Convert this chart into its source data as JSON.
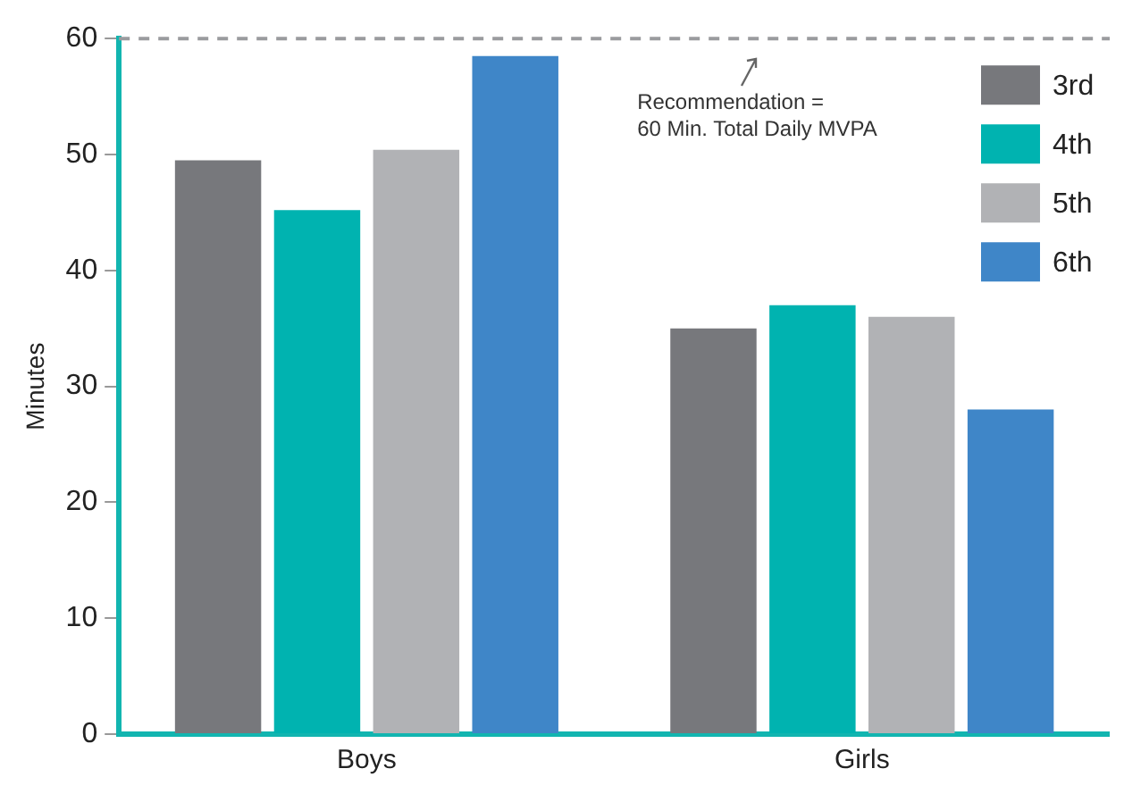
{
  "chart_data": {
    "type": "bar",
    "ylabel": "Minutes",
    "categories": [
      "Boys",
      "Girls"
    ],
    "series": [
      {
        "name": "3rd",
        "color": "#77787c",
        "values": [
          49.5,
          35.0
        ]
      },
      {
        "name": "4th",
        "color": "#00b3b0",
        "values": [
          45.2,
          37.0
        ]
      },
      {
        "name": "5th",
        "color": "#b1b2b5",
        "values": [
          50.4,
          36.0
        ]
      },
      {
        "name": "6th",
        "color": "#3f86c8",
        "values": [
          58.5,
          28.0
        ]
      }
    ],
    "ylim": [
      0,
      60
    ],
    "yticks": [
      0,
      10,
      20,
      30,
      40,
      50,
      60
    ],
    "grid": false,
    "legend": "top right",
    "ref_lines": [
      {
        "axis": "y",
        "value": 60,
        "label": "Recommendation =\n60 Min. Total Daily MVPA",
        "color": "#9a9b9e",
        "line_style": "dashed"
      }
    ]
  }
}
